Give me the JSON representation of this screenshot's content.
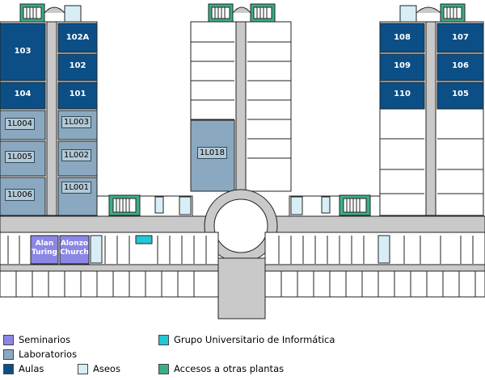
{
  "colors": {
    "aula": "#0b4f86",
    "laboratorio": "#8aa9c0",
    "seminario": "#8c86e6",
    "aseo": "#d8eef7",
    "acceso": "#3aae88",
    "gui": "#25c6d6",
    "corridor": "#c9c9c9",
    "wall": "#222222"
  },
  "rooms": {
    "r103": "103",
    "r102a": "102A",
    "r102": "102",
    "r104": "104",
    "r101": "101",
    "r108": "108",
    "r107": "107",
    "r109": "109",
    "r106": "106",
    "r110": "110",
    "r105": "105"
  },
  "labs": {
    "l004": "1L004",
    "l003": "1L003",
    "l005": "1L005",
    "l002": "1L002",
    "l006": "1L006",
    "l001": "1L001",
    "l018": "1L018"
  },
  "seminars": {
    "alan_line1": "Alan",
    "alan_line2": "Turing",
    "alonzo_line1": "Alonzo",
    "alonzo_line2": "Church"
  },
  "legend": {
    "seminarios": {
      "label": "Seminarios",
      "icon": "seminar-swatch"
    },
    "laboratorios": {
      "label": "Laboratorios",
      "icon": "lab-swatch"
    },
    "aulas": {
      "label": "Aulas",
      "icon": "aula-swatch"
    },
    "aseos": {
      "label": "Aseos",
      "icon": "aseo-swatch"
    },
    "grupo": {
      "label": "Grupo Universitario de Informática",
      "icon": "gui-swatch"
    },
    "accesos": {
      "label": "Accesos a otras plantas",
      "icon": "stairs-swatch"
    }
  }
}
